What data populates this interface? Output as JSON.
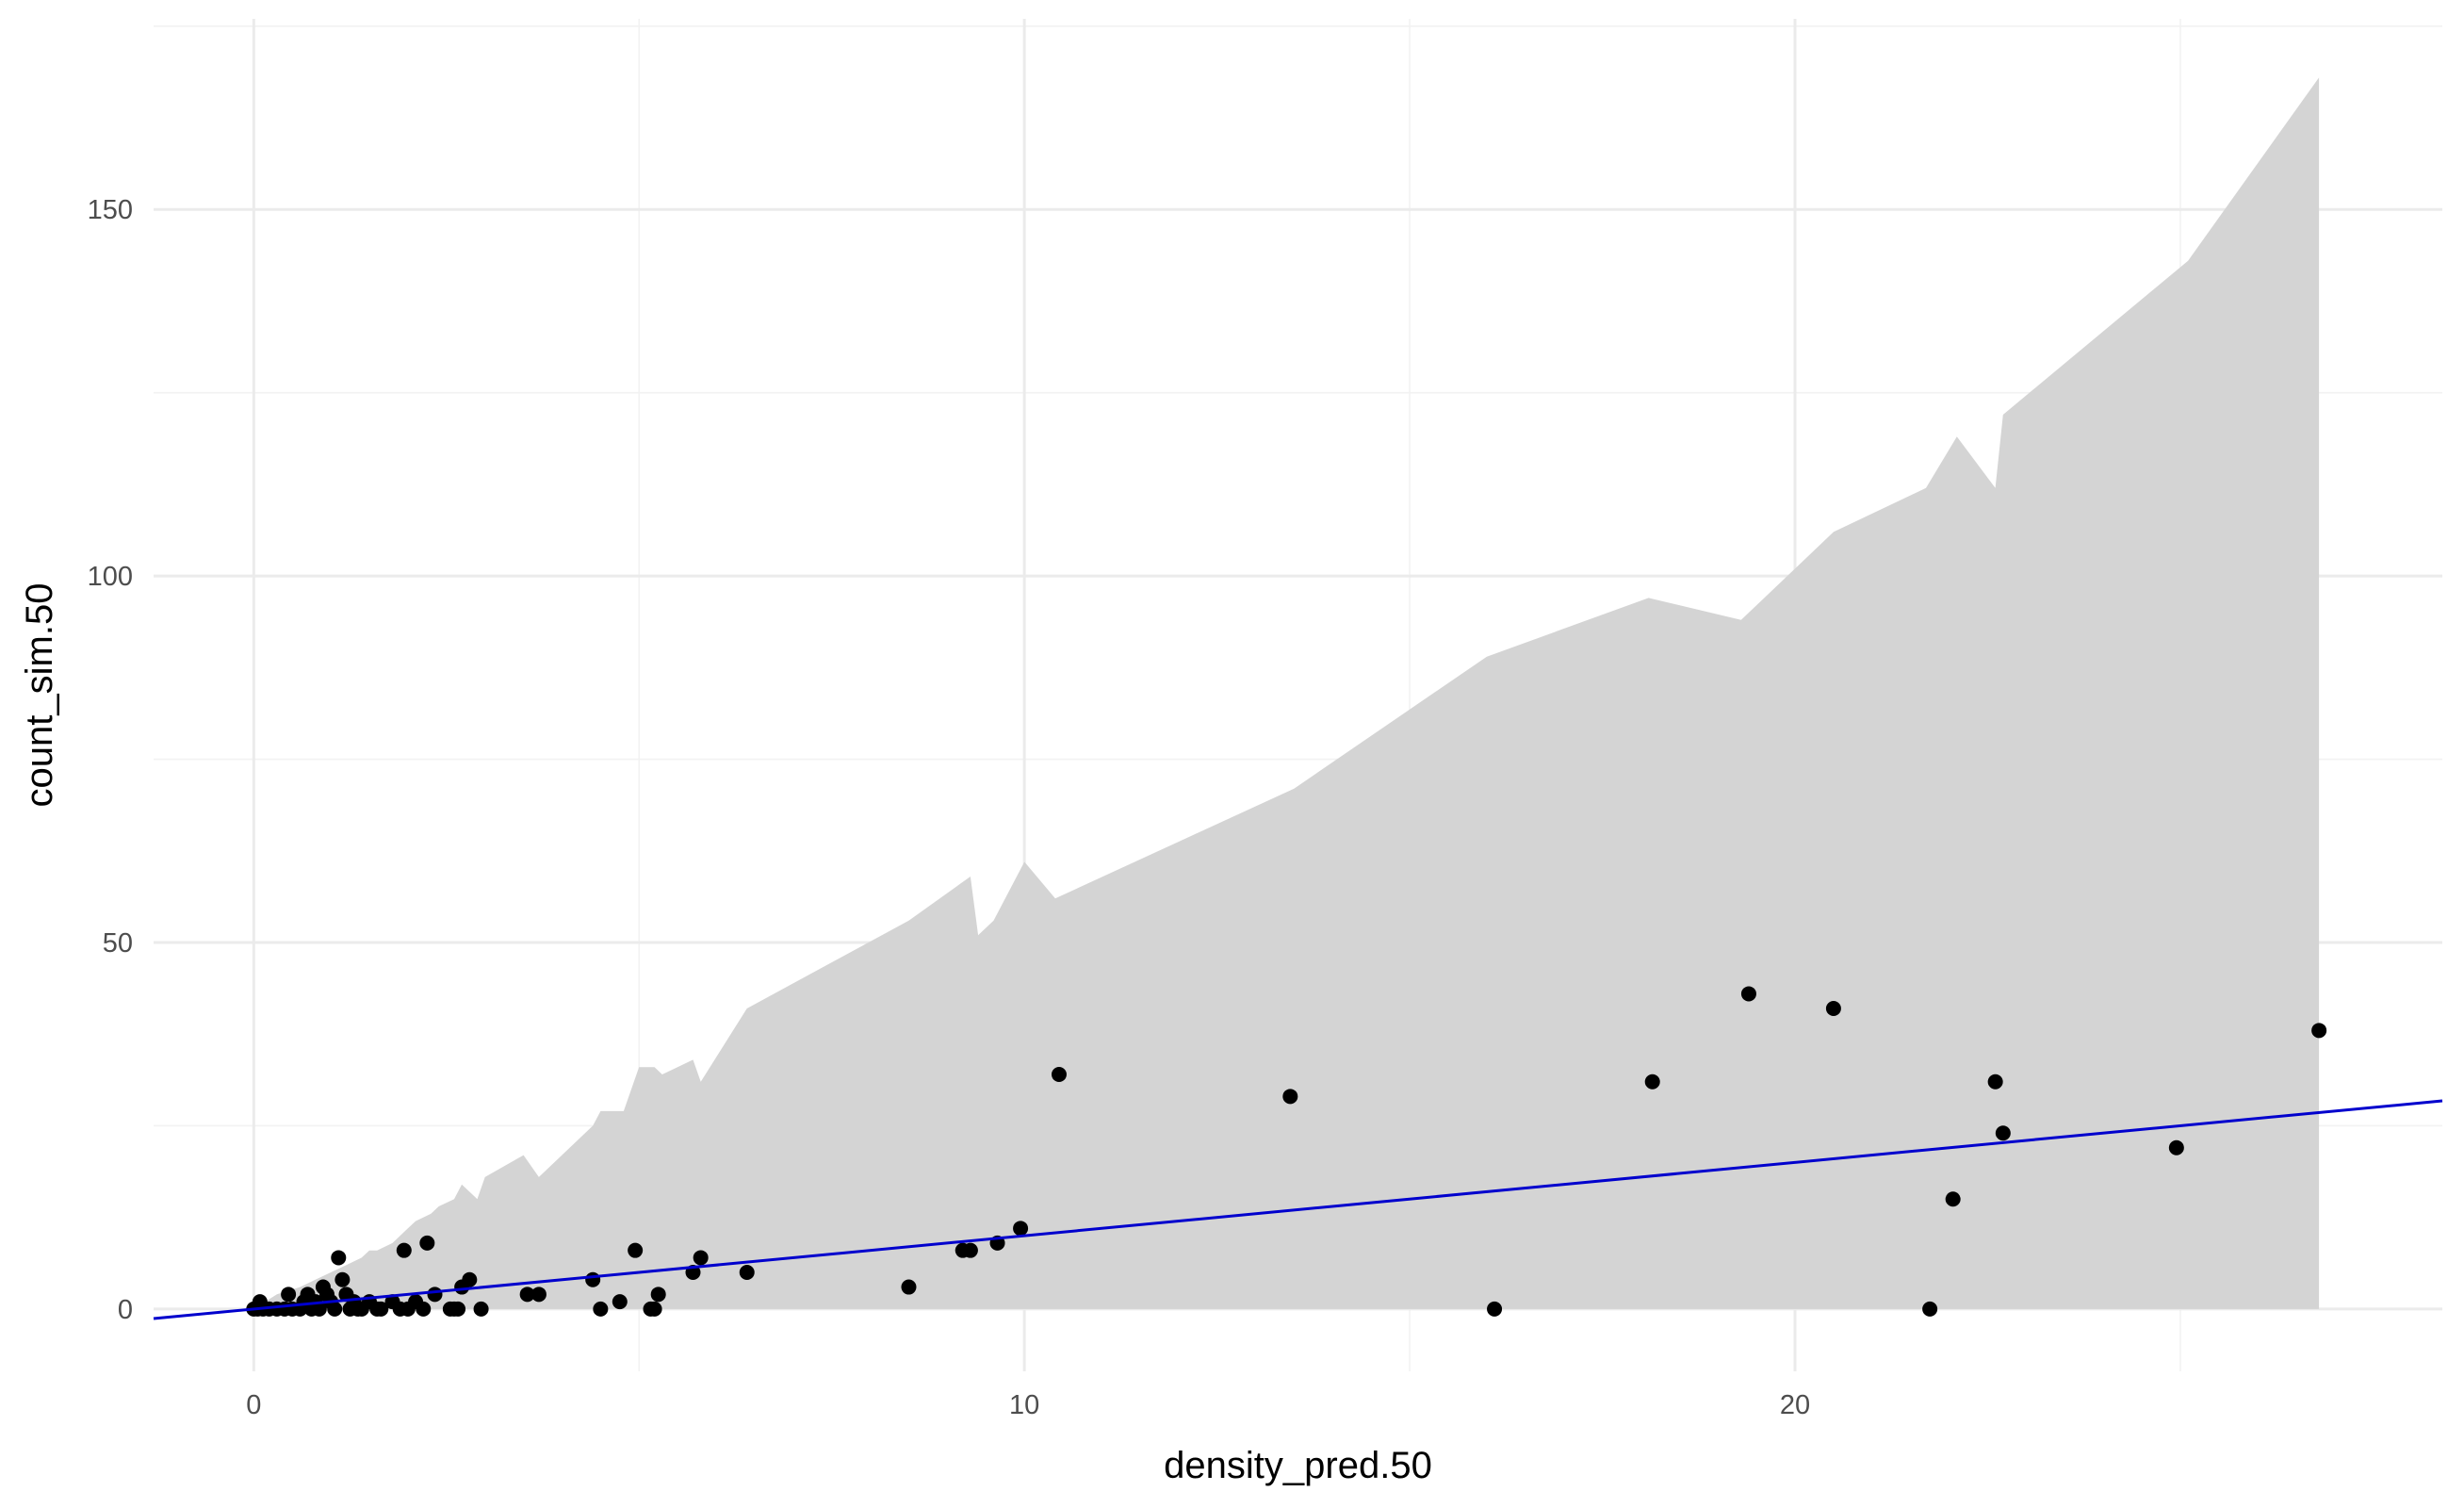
{
  "chart_data": {
    "type": "scatter",
    "title": "",
    "xlabel": "density_pred.50",
    "ylabel": "count_sim.50",
    "xlim": [
      -1.3,
      28.4
    ],
    "ylim": [
      -8.5,
      176
    ],
    "x_ticks": [
      0,
      10,
      20
    ],
    "x_tick_labels": [
      "0",
      "10",
      "20"
    ],
    "y_ticks": [
      0,
      50,
      100,
      150
    ],
    "y_tick_labels": [
      "0",
      "50",
      "100",
      "150"
    ],
    "grid": true,
    "legend": "none",
    "colors": {
      "ribbon": "#d4d4d4",
      "points": "#000000",
      "fit_line": "#0000cd",
      "grid_major": "#ebebeb",
      "grid_minor": "#f2f2f2"
    },
    "ribbon_upper": [
      [
        0,
        0
      ],
      [
        0.3,
        2
      ],
      [
        0.6,
        3
      ],
      [
        0.8,
        4
      ],
      [
        1.0,
        5
      ],
      [
        1.2,
        6
      ],
      [
        1.4,
        7
      ],
      [
        1.5,
        8
      ],
      [
        1.6,
        8
      ],
      [
        1.8,
        9
      ],
      [
        2.0,
        11
      ],
      [
        2.1,
        12
      ],
      [
        2.3,
        13
      ],
      [
        2.4,
        14
      ],
      [
        2.6,
        15
      ],
      [
        2.7,
        17
      ],
      [
        2.9,
        15
      ],
      [
        3.0,
        18
      ],
      [
        3.5,
        21
      ],
      [
        3.7,
        18
      ],
      [
        4.4,
        25
      ],
      [
        4.5,
        27
      ],
      [
        4.8,
        27
      ],
      [
        5.0,
        33
      ],
      [
        5.2,
        33
      ],
      [
        5.3,
        32
      ],
      [
        5.7,
        34
      ],
      [
        5.8,
        31
      ],
      [
        6.4,
        41
      ],
      [
        8.5,
        53
      ],
      [
        9.3,
        59
      ],
      [
        9.4,
        51
      ],
      [
        9.6,
        53
      ],
      [
        10.0,
        61
      ],
      [
        10.4,
        56
      ],
      [
        13.5,
        71
      ],
      [
        16.0,
        89
      ],
      [
        18.1,
        97
      ],
      [
        19.3,
        94
      ],
      [
        20.5,
        106
      ],
      [
        21.7,
        112
      ],
      [
        22.1,
        119
      ],
      [
        22.6,
        112
      ],
      [
        22.7,
        122
      ],
      [
        25.1,
        143
      ],
      [
        26.8,
        168
      ]
    ],
    "ribbon_lower": [
      [
        0,
        0
      ],
      [
        26.8,
        0
      ]
    ],
    "points": [
      [
        0,
        0
      ],
      [
        0.05,
        0
      ],
      [
        0.08,
        1
      ],
      [
        0.12,
        0
      ],
      [
        0.2,
        0
      ],
      [
        0.3,
        0
      ],
      [
        0.4,
        0
      ],
      [
        0.45,
        2
      ],
      [
        0.5,
        0
      ],
      [
        0.6,
        0
      ],
      [
        0.65,
        1
      ],
      [
        0.7,
        2
      ],
      [
        0.75,
        0
      ],
      [
        0.8,
        1
      ],
      [
        0.85,
        0
      ],
      [
        0.9,
        3
      ],
      [
        0.95,
        2
      ],
      [
        1.0,
        1
      ],
      [
        1.05,
        0
      ],
      [
        1.1,
        7
      ],
      [
        1.15,
        4
      ],
      [
        1.2,
        2
      ],
      [
        1.25,
        0
      ],
      [
        1.3,
        1
      ],
      [
        1.35,
        0
      ],
      [
        1.4,
        0
      ],
      [
        1.5,
        1
      ],
      [
        1.6,
        0
      ],
      [
        1.65,
        0
      ],
      [
        1.8,
        1
      ],
      [
        1.9,
        0
      ],
      [
        1.95,
        8
      ],
      [
        2.0,
        0
      ],
      [
        2.1,
        1
      ],
      [
        2.2,
        0
      ],
      [
        2.25,
        9
      ],
      [
        2.35,
        2
      ],
      [
        2.55,
        0
      ],
      [
        2.6,
        0
      ],
      [
        2.65,
        0
      ],
      [
        2.7,
        3
      ],
      [
        2.8,
        4
      ],
      [
        2.95,
        0
      ],
      [
        3.55,
        2
      ],
      [
        3.7,
        2
      ],
      [
        4.4,
        4
      ],
      [
        4.5,
        0
      ],
      [
        4.75,
        1
      ],
      [
        4.95,
        8
      ],
      [
        5.15,
        0
      ],
      [
        5.2,
        0
      ],
      [
        5.25,
        2
      ],
      [
        5.7,
        5
      ],
      [
        5.8,
        7
      ],
      [
        6.4,
        5
      ],
      [
        8.5,
        3
      ],
      [
        9.2,
        8
      ],
      [
        9.3,
        8
      ],
      [
        9.65,
        9
      ],
      [
        9.95,
        11
      ],
      [
        10.45,
        32
      ],
      [
        13.45,
        29
      ],
      [
        16.1,
        0
      ],
      [
        18.15,
        31
      ],
      [
        19.4,
        43
      ],
      [
        20.5,
        41
      ],
      [
        21.75,
        0
      ],
      [
        22.05,
        15
      ],
      [
        22.6,
        31
      ],
      [
        22.7,
        24
      ],
      [
        24.95,
        22
      ],
      [
        26.8,
        38
      ]
    ],
    "fit_line": {
      "slope": 1.0,
      "intercept": 0,
      "x_range": [
        -1.3,
        28.4
      ]
    }
  }
}
